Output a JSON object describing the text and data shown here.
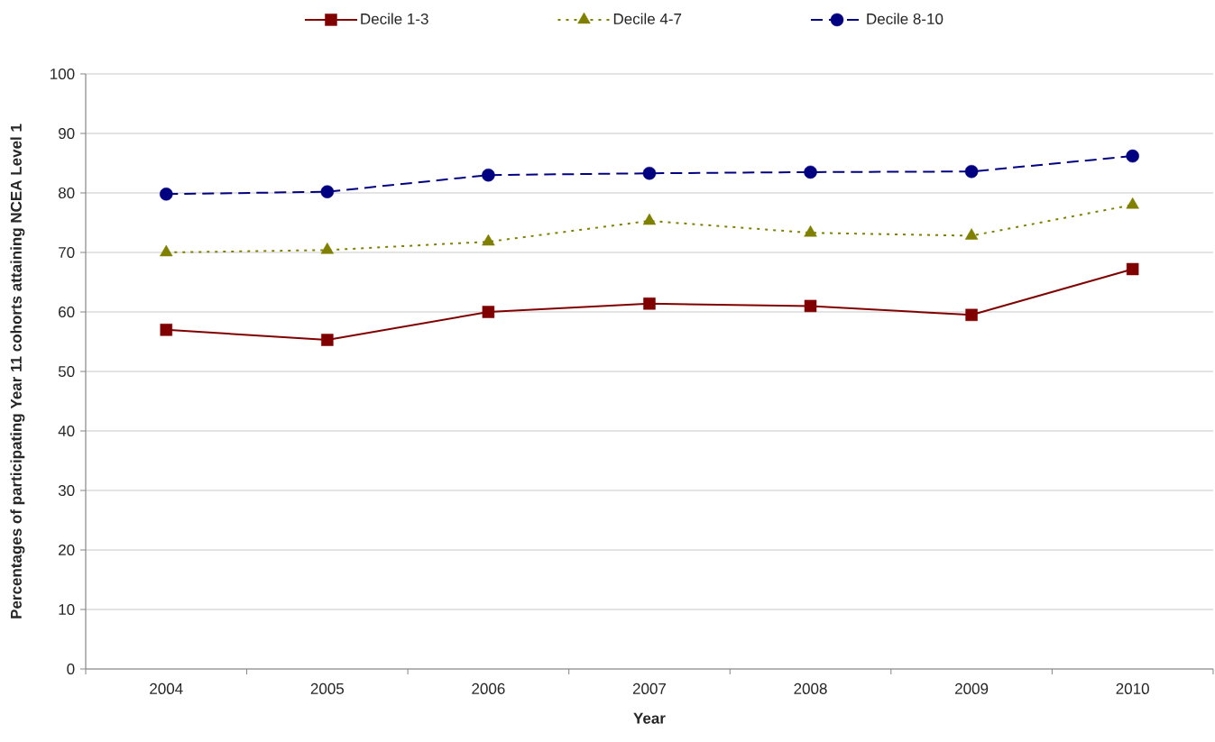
{
  "chart_data": {
    "type": "line",
    "xlabel": "Year",
    "ylabel": "Percentages of participating Year 11 cohorts attaining NCEA Level 1",
    "categories": [
      "2004",
      "2005",
      "2006",
      "2007",
      "2008",
      "2009",
      "2010"
    ],
    "series": [
      {
        "name": "Decile 1-3",
        "color": "#800000",
        "marker": "square",
        "line_style": "solid",
        "values": [
          57.0,
          55.3,
          60.0,
          61.4,
          61.0,
          59.5,
          67.2
        ]
      },
      {
        "name": "Decile 4-7",
        "color": "#808000",
        "marker": "triangle",
        "line_style": "dotted",
        "values": [
          70.0,
          70.4,
          71.8,
          75.3,
          73.3,
          72.8,
          78.0
        ]
      },
      {
        "name": "Decile 8-10",
        "color": "#000080",
        "marker": "circle",
        "line_style": "dashed",
        "values": [
          79.8,
          80.2,
          83.0,
          83.3,
          83.5,
          83.6,
          86.2
        ]
      }
    ],
    "ylim": [
      0,
      100
    ],
    "yticks": [
      0,
      10,
      20,
      30,
      40,
      50,
      60,
      70,
      80,
      90,
      100
    ],
    "grid": "y",
    "legend": "top"
  }
}
